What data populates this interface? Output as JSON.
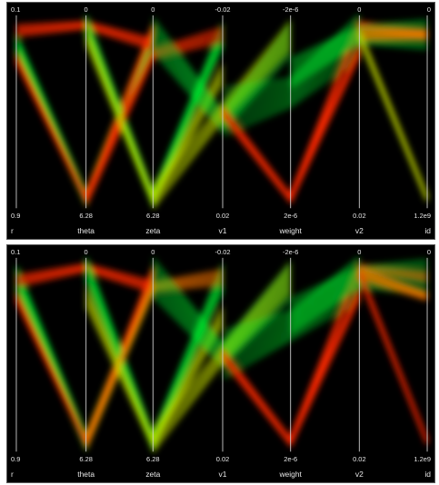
{
  "colors": {
    "background": "#000000",
    "low_value": "#00ff33",
    "high_value": "#ff2a00",
    "axis": "#d8d8d8",
    "text": "#e6e6e6"
  },
  "chart_data": [
    {
      "type": "parallel-coordinates",
      "axes": [
        {
          "name": "r",
          "top": "0.1",
          "bottom": "0.9"
        },
        {
          "name": "theta",
          "top": "0",
          "bottom": "6.28"
        },
        {
          "name": "zeta",
          "top": "0",
          "bottom": "6.28"
        },
        {
          "name": "v1",
          "top": "-0.02",
          "bottom": "0.02"
        },
        {
          "name": "weight",
          "top": "-2e-6",
          "bottom": "2e-6"
        },
        {
          "name": "v2",
          "top": "0",
          "bottom": "0.02"
        },
        {
          "name": "id",
          "top": "0",
          "bottom": "1.2e9"
        }
      ],
      "grid": false,
      "legend": "none"
    },
    {
      "type": "parallel-coordinates",
      "axes": [
        {
          "name": "r",
          "top": "0.1",
          "bottom": "0.9"
        },
        {
          "name": "theta",
          "top": "0",
          "bottom": "6.28"
        },
        {
          "name": "zeta",
          "top": "0",
          "bottom": "6.28"
        },
        {
          "name": "v1",
          "top": "-0.02",
          "bottom": "0.02"
        },
        {
          "name": "weight",
          "top": "-2e-6",
          "bottom": "2e-6"
        },
        {
          "name": "v2",
          "top": "0",
          "bottom": "0.02"
        },
        {
          "name": "id",
          "top": "0",
          "bottom": "1.2e9"
        }
      ],
      "grid": false,
      "legend": "none"
    }
  ]
}
